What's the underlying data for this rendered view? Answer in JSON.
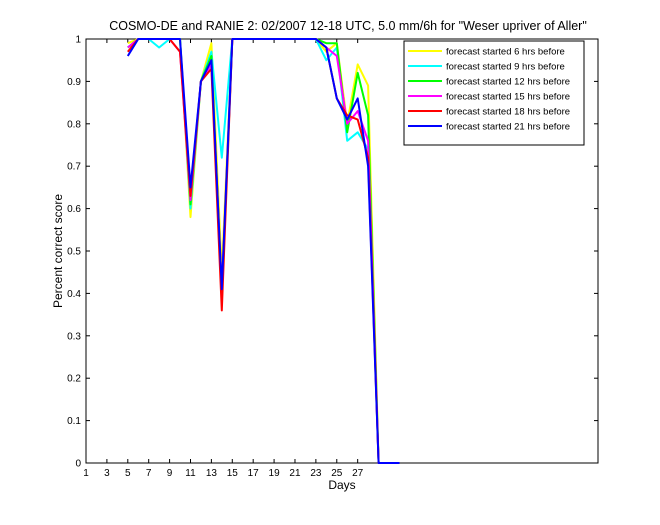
{
  "chart_data": {
    "type": "line",
    "title": "COSMO-DE and RANIE 2: 02/2007 12-18 UTC, 5.0 mm/6h for \"Weser upriver of Aller\"",
    "xlabel": "Days",
    "ylabel": "Percent correct score",
    "xlim": [
      1,
      50
    ],
    "ylim": [
      0,
      1
    ],
    "xticks": [
      1,
      3,
      5,
      7,
      9,
      11,
      13,
      15,
      17,
      19,
      21,
      23,
      25,
      27
    ],
    "yticks": [
      0,
      0.1,
      0.2,
      0.3,
      0.4,
      0.5,
      0.6,
      0.7,
      0.8,
      0.9,
      1
    ],
    "ytick_labels": [
      "0",
      "0.1",
      "0.2",
      "0.3",
      "0.4",
      "0.5",
      "0.6",
      "0.7",
      "0.8",
      "0.9",
      "1"
    ],
    "grid": false,
    "legend_position": "top-right",
    "x": [
      5,
      6,
      7,
      8,
      9,
      10,
      11,
      12,
      13,
      14,
      15,
      16,
      17,
      18,
      19,
      20,
      21,
      22,
      23,
      24,
      25,
      26,
      27,
      28,
      29,
      30,
      31
    ],
    "series": [
      {
        "name": "forecast started 6 hrs before",
        "color": "#ffff00",
        "values": [
          0.99,
          1,
          1,
          1,
          1,
          1,
          0.58,
          0.9,
          0.99,
          0.45,
          1,
          1,
          1,
          1,
          1,
          1,
          1,
          1,
          1,
          0.97,
          0.99,
          0.8,
          0.94,
          0.89,
          0,
          0,
          0
        ]
      },
      {
        "name": "forecast started 9 hrs before",
        "color": "#00ffff",
        "values": [
          0.98,
          1,
          1,
          0.98,
          1,
          1,
          0.6,
          0.9,
          0.97,
          0.72,
          1,
          1,
          1,
          1,
          1,
          1,
          1,
          1,
          1,
          0.95,
          0.98,
          0.76,
          0.78,
          0.74,
          0,
          0,
          0
        ]
      },
      {
        "name": "forecast started 12 hrs before",
        "color": "#00ff00",
        "values": [
          0.98,
          1,
          1,
          1,
          1,
          1,
          0.61,
          0.9,
          0.96,
          0.4,
          1,
          1,
          1,
          1,
          1,
          1,
          1,
          1,
          1,
          0.99,
          0.99,
          0.78,
          0.92,
          0.82,
          0,
          0,
          0
        ]
      },
      {
        "name": "forecast started 15 hrs before",
        "color": "#ff00ff",
        "values": [
          0.98,
          1,
          1,
          1,
          1,
          0.97,
          0.62,
          0.9,
          0.94,
          0.41,
          1,
          1,
          1,
          1,
          1,
          1,
          1,
          1,
          1,
          0.98,
          0.96,
          0.8,
          0.83,
          0.76,
          0,
          0,
          0
        ]
      },
      {
        "name": "forecast started 18 hrs before",
        "color": "#ff0000",
        "values": [
          0.97,
          1,
          1,
          1,
          1,
          0.97,
          0.63,
          0.9,
          0.93,
          0.36,
          1,
          1,
          1,
          1,
          1,
          1,
          1,
          1,
          1,
          0.98,
          0.86,
          0.82,
          0.81,
          0.72,
          0,
          0,
          0
        ]
      },
      {
        "name": "forecast started 21 hrs before",
        "color": "#0000ff",
        "values": [
          0.96,
          1,
          1,
          1,
          1,
          1,
          0.65,
          0.9,
          0.95,
          0.41,
          1,
          1,
          1,
          1,
          1,
          1,
          1,
          1,
          1,
          0.98,
          0.86,
          0.81,
          0.86,
          0.7,
          0,
          0,
          0
        ]
      }
    ]
  }
}
